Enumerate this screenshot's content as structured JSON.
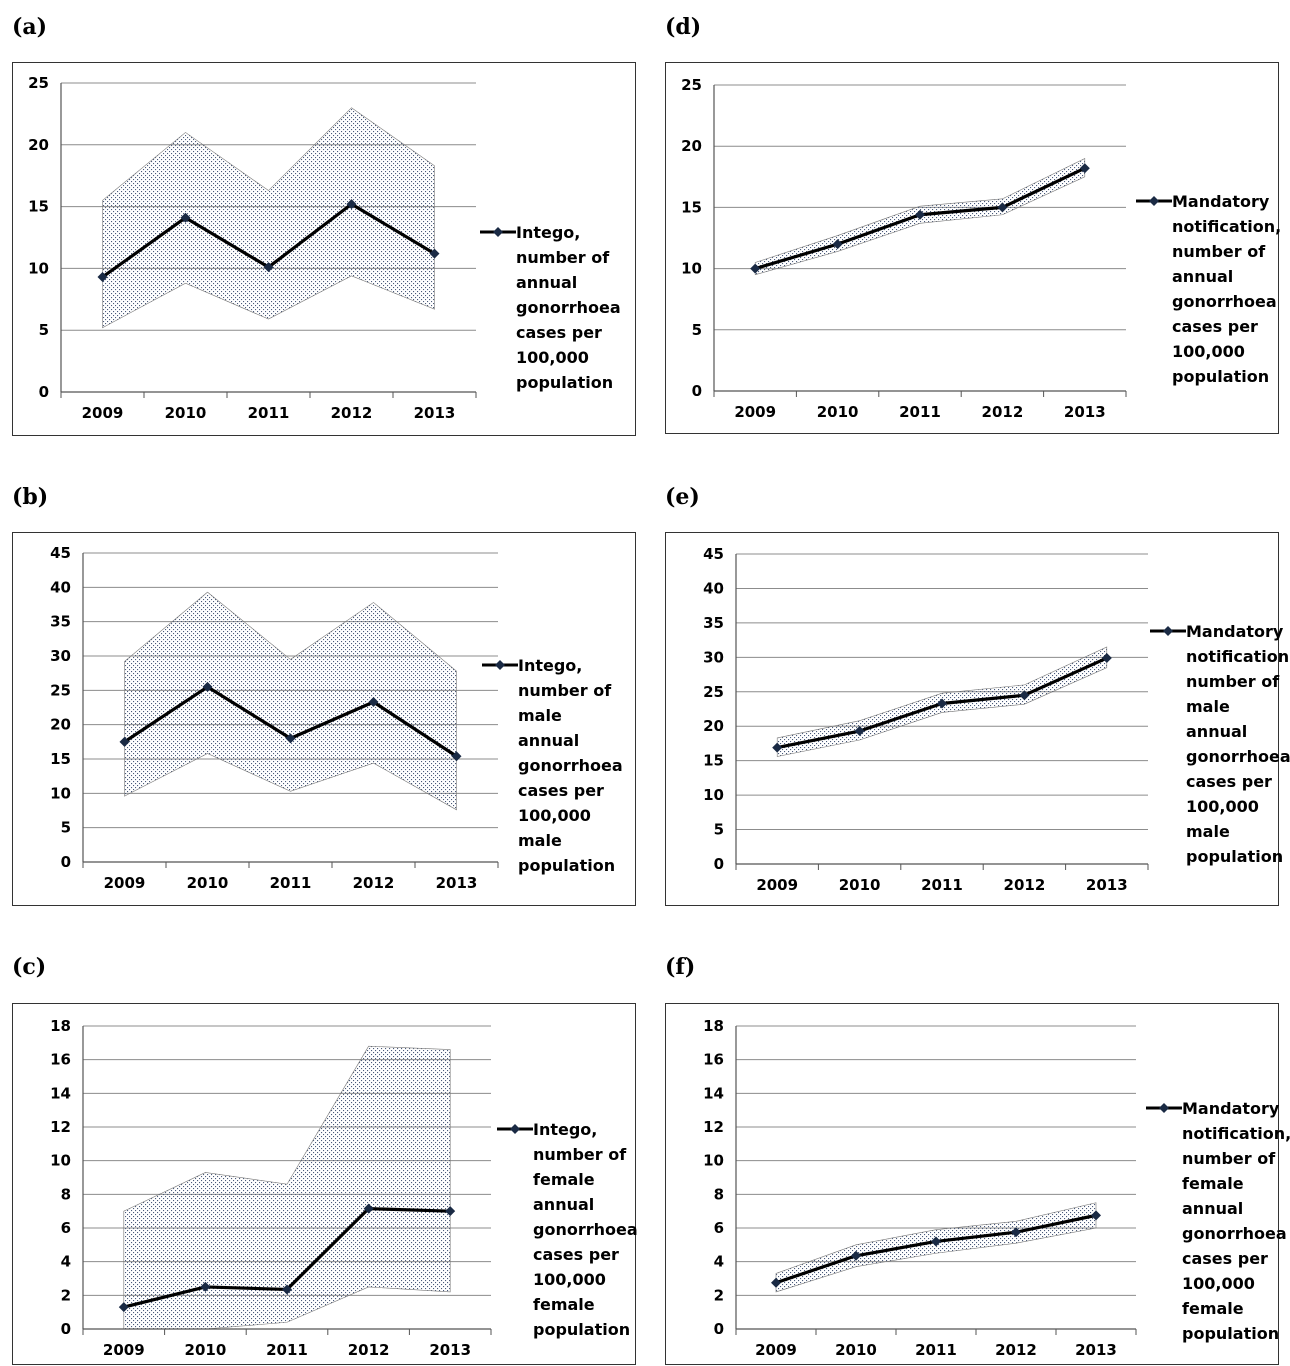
{
  "charts": [
    {
      "panel": "(a)",
      "type": "line",
      "categories": [
        "2009",
        "2010",
        "2011",
        "2012",
        "2013"
      ],
      "values": [
        9.3,
        14.1,
        10.1,
        15.2,
        11.2
      ],
      "band_upper": [
        15.5,
        21.0,
        16.3,
        23.0,
        18.3
      ],
      "band_lower": [
        5.2,
        8.8,
        5.9,
        9.4,
        6.7
      ],
      "yticks": [
        "0",
        "5",
        "10",
        "15",
        "20",
        "25"
      ],
      "ylim": [
        0,
        25
      ],
      "legend": "Intego,\nnumber of\nannual\ngonorrhoea\ncases per\n100,000\npopulation"
    },
    {
      "panel": "(b)",
      "type": "line",
      "categories": [
        "2009",
        "2010",
        "2011",
        "2012",
        "2013"
      ],
      "values": [
        17.5,
        25.5,
        18.0,
        23.3,
        15.4
      ],
      "band_upper": [
        29.2,
        39.3,
        29.5,
        37.8,
        27.8
      ],
      "band_lower": [
        9.6,
        15.8,
        10.3,
        14.4,
        7.6
      ],
      "yticks": [
        "0",
        "5",
        "10",
        "15",
        "20",
        "25",
        "30",
        "35",
        "40",
        "45"
      ],
      "ylim": [
        0,
        45
      ],
      "legend": "Intego,\nnumber of\nmale annual\ngonorrhoea\ncases per\n100,000\nmale\npopulation"
    },
    {
      "panel": "(c)",
      "type": "line",
      "categories": [
        "2009",
        "2010",
        "2011",
        "2012",
        "2013"
      ],
      "values": [
        1.3,
        2.5,
        2.35,
        7.15,
        7.0
      ],
      "band_upper": [
        7.0,
        9.3,
        8.6,
        16.8,
        16.6
      ],
      "band_lower": [
        0.0,
        0.0,
        0.4,
        2.5,
        2.2
      ],
      "yticks": [
        "0",
        "2",
        "4",
        "6",
        "8",
        "10",
        "12",
        "14",
        "16",
        "18"
      ],
      "ylim": [
        0,
        18
      ],
      "legend": "Intego,\nnumber of\nfemale\nannual\ngonorrhoea\ncases per\n100,000\nfemale\npopulation"
    },
    {
      "panel": "(d)",
      "type": "line",
      "categories": [
        "2009",
        "2010",
        "2011",
        "2012",
        "2013"
      ],
      "values": [
        10.0,
        12.0,
        14.4,
        15.0,
        18.2
      ],
      "band_upper": [
        10.5,
        12.7,
        15.1,
        15.7,
        19.0
      ],
      "band_lower": [
        9.5,
        11.4,
        13.7,
        14.4,
        17.5
      ],
      "yticks": [
        "0",
        "5",
        "10",
        "15",
        "20",
        "25"
      ],
      "ylim": [
        0,
        25
      ],
      "legend": "Mandatory\nnotification,\nnumber of\nannual\ngonorrhoea\ncases per\n100,000\npopulation"
    },
    {
      "panel": "(e)",
      "type": "line",
      "categories": [
        "2009",
        "2010",
        "2011",
        "2012",
        "2013"
      ],
      "values": [
        16.9,
        19.3,
        23.3,
        24.5,
        29.9
      ],
      "band_upper": [
        18.3,
        20.8,
        24.8,
        26.0,
        31.5
      ],
      "band_lower": [
        15.6,
        18.0,
        22.0,
        23.2,
        28.5
      ],
      "yticks": [
        "0",
        "5",
        "10",
        "15",
        "20",
        "25",
        "30",
        "35",
        "40",
        "45"
      ],
      "ylim": [
        0,
        45
      ],
      "legend": "Mandatory\nnotification,\nnumber of\nmale\nannual\ngonorrhoea\ncases per\n100,000\nmale\npopulation"
    },
    {
      "panel": "(f)",
      "type": "line",
      "categories": [
        "2009",
        "2010",
        "2011",
        "2012",
        "2013"
      ],
      "values": [
        2.75,
        4.35,
        5.2,
        5.75,
        6.75
      ],
      "band_upper": [
        3.3,
        5.0,
        5.9,
        6.4,
        7.5
      ],
      "band_lower": [
        2.2,
        3.7,
        4.5,
        5.1,
        6.0
      ],
      "yticks": [
        "0",
        "2",
        "4",
        "6",
        "8",
        "10",
        "12",
        "14",
        "16",
        "18"
      ],
      "ylim": [
        0,
        18
      ],
      "legend": "Mandatory\nnotification,\nnumber of\nfemale\nannual\ngonorrhoea\ncases per\n100,000\nfemale\npopulation"
    }
  ],
  "colors": {
    "line": "#000000",
    "marker": "#1a2a44",
    "grid": "#8c8c8c",
    "stipple": "#4a5a7a"
  }
}
